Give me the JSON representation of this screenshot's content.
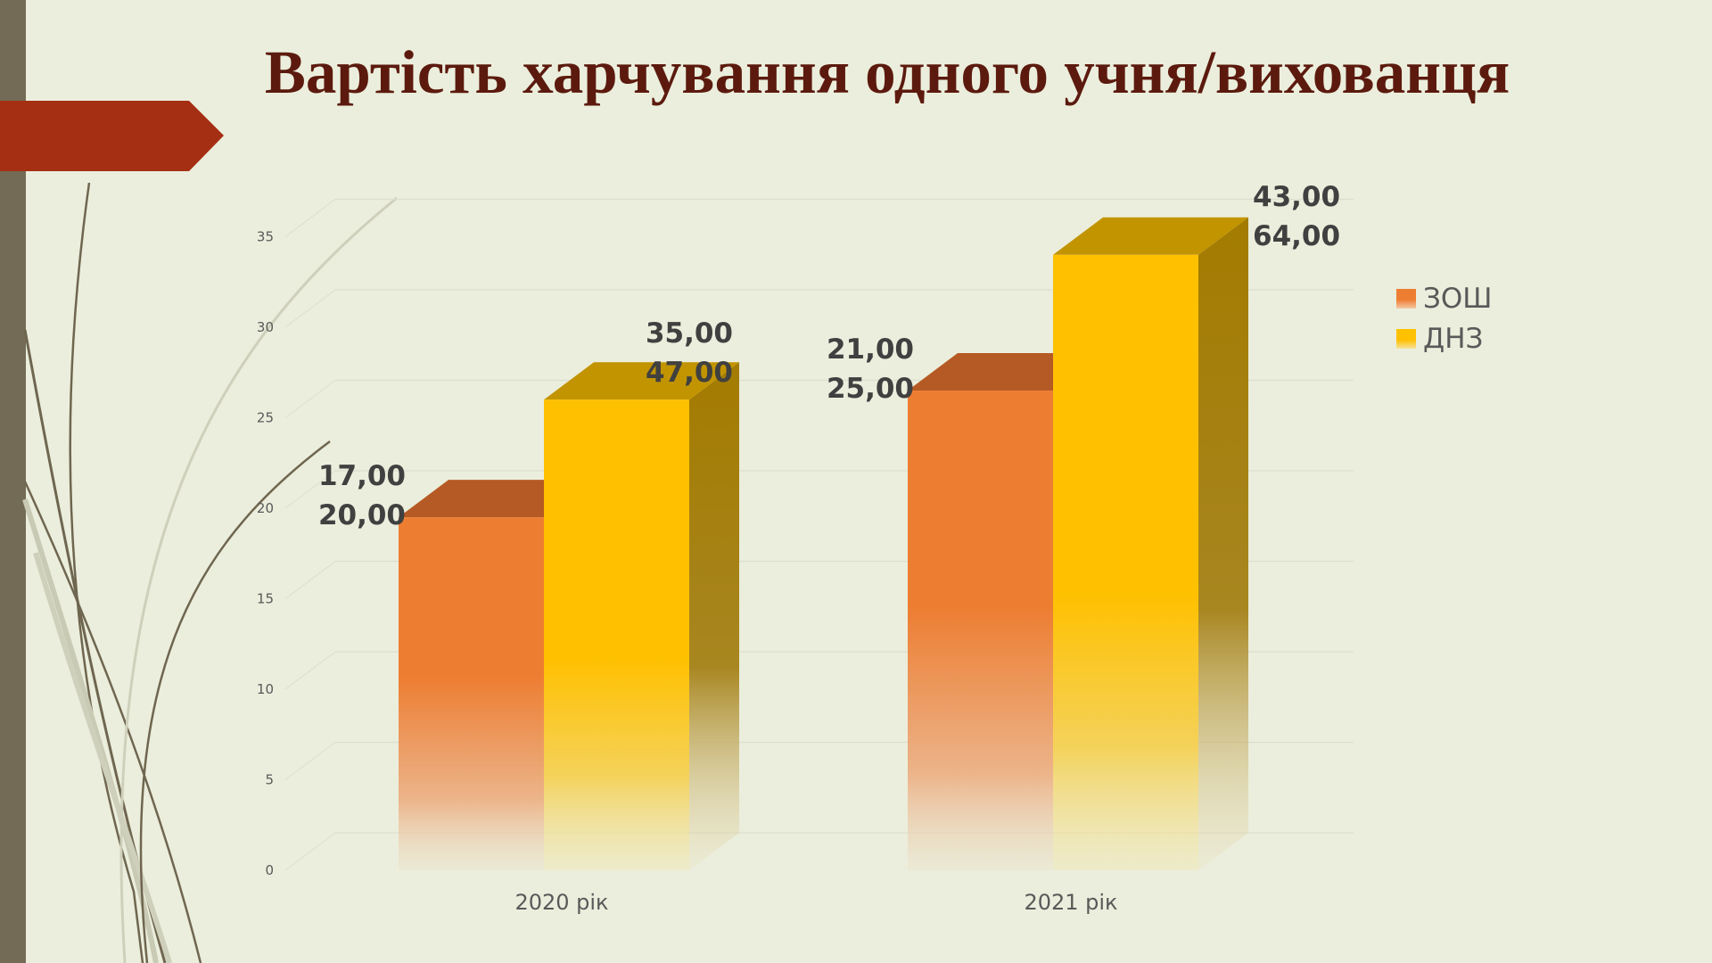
{
  "title": "Вартість харчування одного учня/вихованця",
  "colors": {
    "title": "#5c1a0e",
    "accent_arrow": "#a52f12",
    "series_zosh": "#ed7d31",
    "series_dnz": "#ffc000"
  },
  "chart_data": {
    "type": "bar",
    "title": "Вартість харчування одного учня/вихованця",
    "categories": [
      "2020 рік",
      "2021 рік"
    ],
    "series": [
      {
        "name": "ЗОШ",
        "values": [
          19.5,
          26.5
        ]
      },
      {
        "name": "ДНЗ",
        "values": [
          26,
          34
        ]
      }
    ],
    "data_labels": [
      {
        "category": "2020 рік",
        "series": "ЗОШ",
        "lines": [
          "17,00",
          "20,00"
        ]
      },
      {
        "category": "2020 рік",
        "series": "ДНЗ",
        "lines": [
          "35,00",
          "47,00"
        ]
      },
      {
        "category": "2021 рік",
        "series": "ЗОШ",
        "lines": [
          "21,00",
          "25,00"
        ]
      },
      {
        "category": "2021 рік",
        "series": "ДНЗ",
        "lines": [
          "43,00",
          "64,00"
        ]
      }
    ],
    "y_ticks": [
      "0",
      "5",
      "10",
      "15",
      "20",
      "25",
      "30",
      "35"
    ],
    "ylim": [
      0,
      37
    ],
    "grid": true,
    "legend": "right",
    "style": "3d-column"
  }
}
